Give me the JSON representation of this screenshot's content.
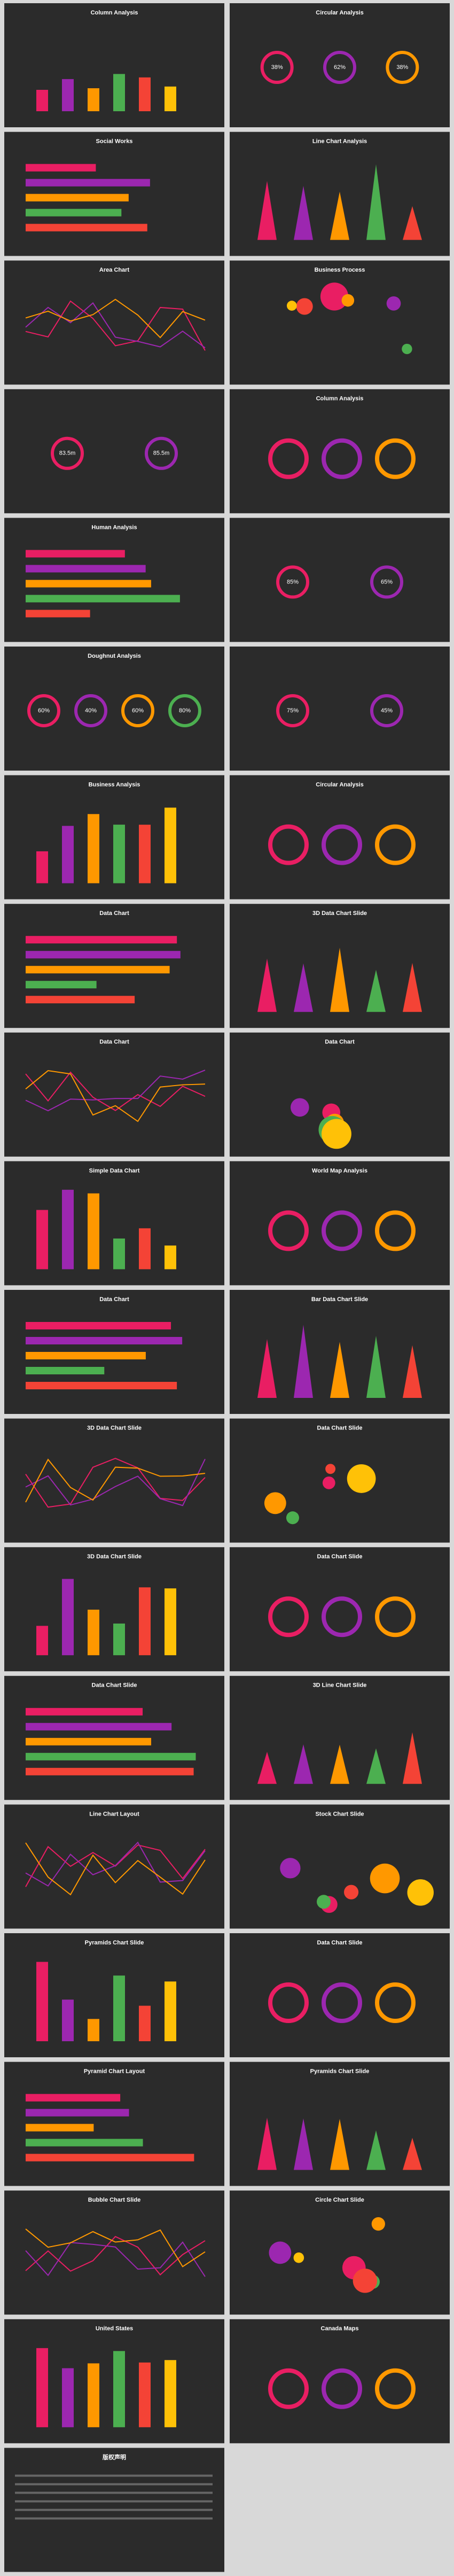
{
  "slides": [
    {
      "title": "Column Analysis"
    },
    {
      "title": "Circular Analysis",
      "figures": [
        "38%",
        "62%",
        "38%"
      ]
    },
    {
      "title": "Social Works"
    },
    {
      "title": "Line Chart Analysis"
    },
    {
      "title": "Area Chart"
    },
    {
      "title": "Business Process"
    },
    {
      "figures": [
        "83.5m",
        "85.5m"
      ]
    },
    {
      "title": "Column Analysis"
    },
    {
      "title": "Human Analysis"
    },
    {
      "figures": [
        "85%",
        "65%"
      ]
    },
    {
      "title": "Doughnut Analysis",
      "figures": [
        "60%",
        "40%",
        "60%",
        "80%"
      ]
    },
    {
      "figures": [
        "75%",
        "45%"
      ]
    },
    {
      "title": "Business Analysis"
    },
    {
      "title": "Circular Analysis"
    },
    {
      "title": "Data Chart"
    },
    {
      "title": "3D Data Chart Slide"
    },
    {
      "title": "Data Chart"
    },
    {
      "title": "Data Chart"
    },
    {
      "title": "Simple Data Chart"
    },
    {
      "title": "World Map Analysis"
    },
    {
      "title": "Data Chart"
    },
    {
      "title": "Bar Data Chart Slide"
    },
    {
      "title": "3D Data Chart Slide"
    },
    {
      "title": "Data Chart Slide"
    },
    {
      "title": "3D Data Chart Slide"
    },
    {
      "title": "Data Chart Slide"
    },
    {
      "title": "Data Chart Slide"
    },
    {
      "title": "3D Line Chart Slide"
    },
    {
      "title": "Line Chart Layout"
    },
    {
      "title": "Stock Chart Slide"
    },
    {
      "title": "Pyramids Chart Slide"
    },
    {
      "title": "Data Chart Slide"
    },
    {
      "title": "Pyramid Chart Layout"
    },
    {
      "title": "Pyramids Chart Slide"
    },
    {
      "title": "Bubble Chart Slide"
    },
    {
      "title": "Circle Chart Slide"
    },
    {
      "title": "United States"
    },
    {
      "title": "Canada Maps"
    },
    {
      "title": "版权声明"
    }
  ]
}
